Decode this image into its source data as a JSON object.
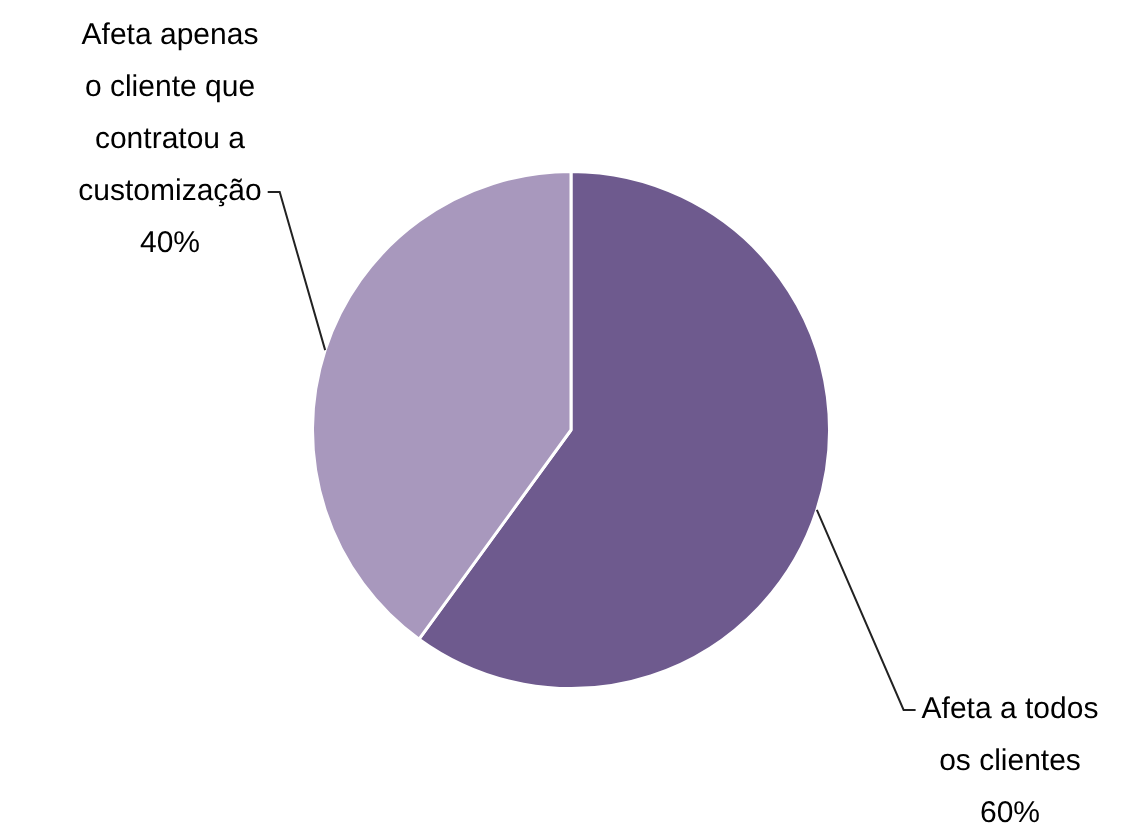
{
  "chart_data": {
    "type": "pie",
    "categories": [
      "Afeta a todos os clientes",
      "Afeta apenas o cliente que contratou a customização"
    ],
    "values": [
      60,
      40
    ],
    "colors": [
      "#6e5a8e",
      "#a898bd"
    ],
    "value_labels": [
      "60%",
      "40%"
    ],
    "legend": false
  }
}
